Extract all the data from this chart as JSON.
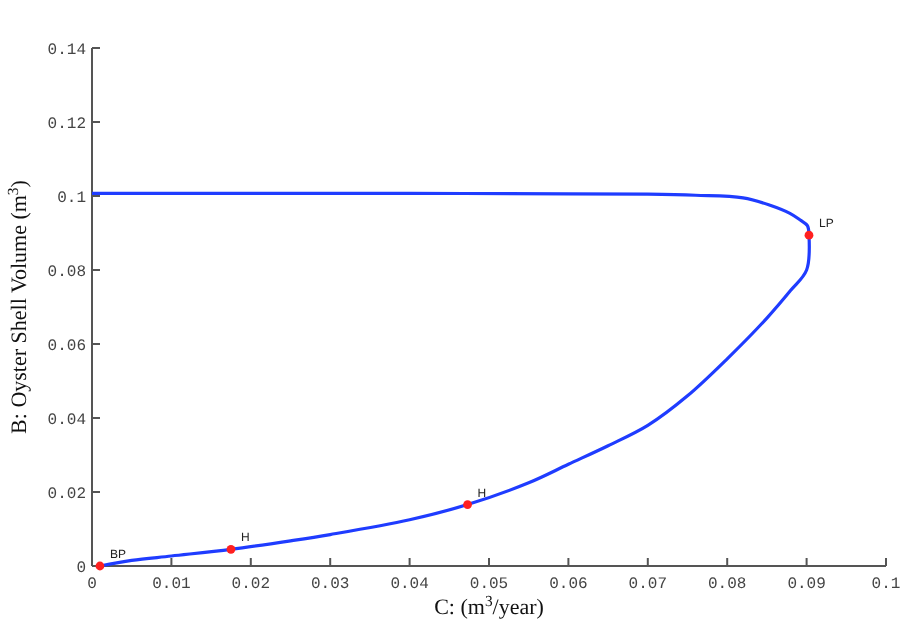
{
  "chart_data": {
    "type": "line",
    "xlabel": "C: (m$^{3}$/year)",
    "ylabel": "B: Oyster Shell Volume (m$^{3}$)",
    "series": [
      {
        "color": "#1f3cff",
        "x": [
          0.001,
          0.005,
          0.01,
          0.0175,
          0.025,
          0.03,
          0.04,
          0.0473,
          0.055,
          0.06,
          0.065,
          0.07,
          0.075,
          0.08,
          0.085,
          0.088,
          0.09,
          0.0903,
          0.0901,
          0.0892,
          0.0879,
          0.0854,
          0.082,
          0.076,
          0.07,
          0.06,
          0.04,
          0.02,
          0.0
        ],
        "values": [
          0.0,
          0.0015,
          0.0027,
          0.0045,
          0.0068,
          0.0085,
          0.0125,
          0.0166,
          0.0225,
          0.0275,
          0.0325,
          0.038,
          0.046,
          0.056,
          0.067,
          0.0745,
          0.08,
          0.0894,
          0.092,
          0.0935,
          0.0953,
          0.0975,
          0.0995,
          0.1002,
          0.1005,
          0.1006,
          0.1007,
          0.1007,
          0.1007
        ]
      },
      {
        "type": "scatter",
        "color": "#ff2020",
        "x": [
          0.001,
          0.0175,
          0.0473,
          0.0903
        ],
        "values": [
          0.0,
          0.0045,
          0.0166,
          0.0894
        ]
      }
    ],
    "annotations": [
      {
        "text": "BP",
        "x": 0.001,
        "y": 0.0
      },
      {
        "text": "H",
        "x": 0.0175,
        "y": 0.0045
      },
      {
        "text": "H",
        "x": 0.0473,
        "y": 0.0166
      },
      {
        "text": "LP",
        "x": 0.0903,
        "y": 0.0894
      }
    ],
    "xlim": [
      0,
      0.1
    ],
    "xticks": [
      0,
      0.01,
      0.02,
      0.03,
      0.04,
      0.05,
      0.06,
      0.07,
      0.08,
      0.09,
      0.1
    ],
    "ylim": [
      0,
      0.14
    ],
    "yticks": [
      0,
      0.02,
      0.04,
      0.06,
      0.08,
      0.1,
      0.12,
      0.14
    ],
    "grid": false,
    "line_style": "solid"
  }
}
